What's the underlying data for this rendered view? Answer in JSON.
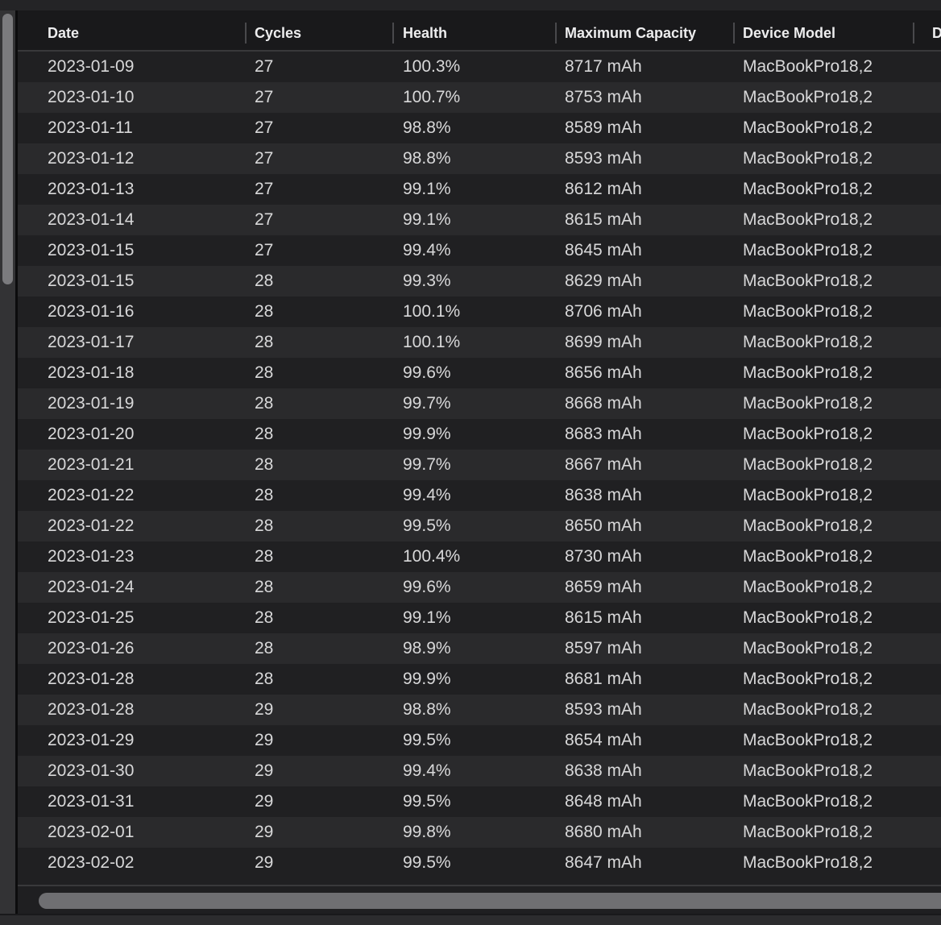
{
  "table": {
    "columns": [
      {
        "key": "date",
        "label": "Date"
      },
      {
        "key": "cycles",
        "label": "Cycles"
      },
      {
        "key": "health",
        "label": "Health"
      },
      {
        "key": "maximum_capacity",
        "label": "Maximum Capacity"
      },
      {
        "key": "device_model",
        "label": "Device Model"
      },
      {
        "key": "d_truncated",
        "label": "D"
      }
    ],
    "rows": [
      [
        "2023-01-09",
        "27",
        "100.3%",
        "8717 mAh",
        "MacBookPro18,2"
      ],
      [
        "2023-01-10",
        "27",
        "100.7%",
        "8753 mAh",
        "MacBookPro18,2"
      ],
      [
        "2023-01-11",
        "27",
        "98.8%",
        "8589 mAh",
        "MacBookPro18,2"
      ],
      [
        "2023-01-12",
        "27",
        "98.8%",
        "8593 mAh",
        "MacBookPro18,2"
      ],
      [
        "2023-01-13",
        "27",
        "99.1%",
        "8612 mAh",
        "MacBookPro18,2"
      ],
      [
        "2023-01-14",
        "27",
        "99.1%",
        "8615 mAh",
        "MacBookPro18,2"
      ],
      [
        "2023-01-15",
        "27",
        "99.4%",
        "8645 mAh",
        "MacBookPro18,2"
      ],
      [
        "2023-01-15",
        "28",
        "99.3%",
        "8629 mAh",
        "MacBookPro18,2"
      ],
      [
        "2023-01-16",
        "28",
        "100.1%",
        "8706 mAh",
        "MacBookPro18,2"
      ],
      [
        "2023-01-17",
        "28",
        "100.1%",
        "8699 mAh",
        "MacBookPro18,2"
      ],
      [
        "2023-01-18",
        "28",
        "99.6%",
        "8656 mAh",
        "MacBookPro18,2"
      ],
      [
        "2023-01-19",
        "28",
        "99.7%",
        "8668 mAh",
        "MacBookPro18,2"
      ],
      [
        "2023-01-20",
        "28",
        "99.9%",
        "8683 mAh",
        "MacBookPro18,2"
      ],
      [
        "2023-01-21",
        "28",
        "99.7%",
        "8667 mAh",
        "MacBookPro18,2"
      ],
      [
        "2023-01-22",
        "28",
        "99.4%",
        "8638 mAh",
        "MacBookPro18,2"
      ],
      [
        "2023-01-22",
        "28",
        "99.5%",
        "8650 mAh",
        "MacBookPro18,2"
      ],
      [
        "2023-01-23",
        "28",
        "100.4%",
        "8730 mAh",
        "MacBookPro18,2"
      ],
      [
        "2023-01-24",
        "28",
        "99.6%",
        "8659 mAh",
        "MacBookPro18,2"
      ],
      [
        "2023-01-25",
        "28",
        "99.1%",
        "8615 mAh",
        "MacBookPro18,2"
      ],
      [
        "2023-01-26",
        "28",
        "98.9%",
        "8597 mAh",
        "MacBookPro18,2"
      ],
      [
        "2023-01-28",
        "28",
        "99.9%",
        "8681 mAh",
        "MacBookPro18,2"
      ],
      [
        "2023-01-28",
        "29",
        "98.8%",
        "8593 mAh",
        "MacBookPro18,2"
      ],
      [
        "2023-01-29",
        "29",
        "99.5%",
        "8654 mAh",
        "MacBookPro18,2"
      ],
      [
        "2023-01-30",
        "29",
        "99.4%",
        "8638 mAh",
        "MacBookPro18,2"
      ],
      [
        "2023-01-31",
        "29",
        "99.5%",
        "8648 mAh",
        "MacBookPro18,2"
      ],
      [
        "2023-02-01",
        "29",
        "99.8%",
        "8680 mAh",
        "MacBookPro18,2"
      ],
      [
        "2023-02-02",
        "29",
        "99.5%",
        "8647 mAh",
        "MacBookPro18,2"
      ]
    ]
  },
  "scrollbars": {
    "vertical": {
      "side": "left",
      "thumb_visible": true
    },
    "horizontal": {
      "side": "bottom",
      "thumb_visible": true
    }
  },
  "colors": {
    "window_background": "#242426",
    "header_background": "#19191b",
    "row_odd": "#202022",
    "row_even": "#2a2a2c",
    "header_text": "#ededee",
    "cell_text": "#d8d8d9",
    "separator": "#39393b",
    "scrollbar_thumb": "#7b7b7e",
    "scrollbar_track": "#333335"
  }
}
